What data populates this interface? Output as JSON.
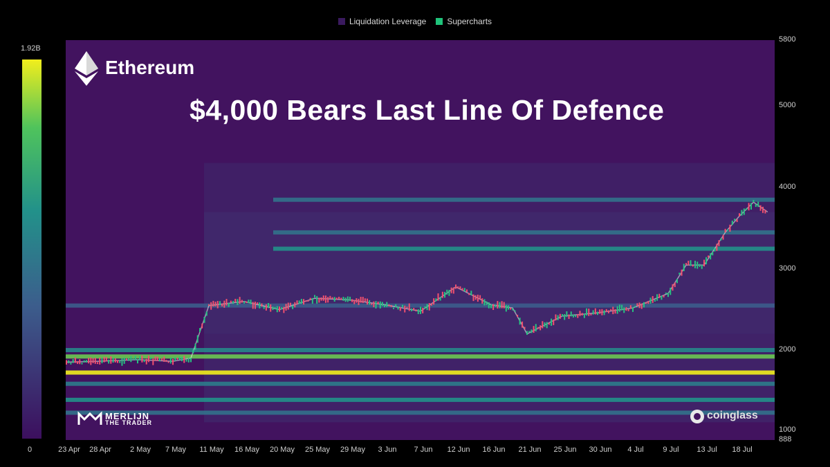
{
  "legend": [
    {
      "label": "Liquidation Leverage",
      "color": "#3a1a5e"
    },
    {
      "label": "Supercharts",
      "color": "#1fc37a"
    }
  ],
  "colorbar": {
    "max_label": "1.92B",
    "min_label": "0"
  },
  "overlay": {
    "asset": "Ethereum",
    "headline": "$4,000 Bears Last Line Of Defence",
    "watermark_left_line1": "MERLIJN",
    "watermark_left_line2": "THE TRADER",
    "watermark_right": "coinglass"
  },
  "chart_data": {
    "type": "heatmap",
    "title": "",
    "xlabel": "",
    "ylabel": "",
    "y_ticks": [
      888,
      1000,
      2000,
      3000,
      4000,
      5000,
      5800
    ],
    "ylim": [
      888,
      5800
    ],
    "x_ticks": [
      "23 Apr",
      "28 Apr",
      "2 May",
      "7 May",
      "11 May",
      "16 May",
      "20 May",
      "25 May",
      "29 May",
      "3 Jun",
      "7 Jun",
      "12 Jun",
      "16 Jun",
      "21 Jun",
      "25 Jun",
      "30 Jun",
      "4 Jul",
      "9 Jul",
      "13 Jul",
      "18 Jul"
    ],
    "colorbar_range": [
      "0",
      "1.92B"
    ],
    "liquidation_levels": [
      {
        "price": 1720,
        "intensity": 1.0
      },
      {
        "price": 1920,
        "intensity": 0.85
      },
      {
        "price": 2000,
        "intensity": 0.55
      },
      {
        "price": 1580,
        "intensity": 0.5
      },
      {
        "price": 1380,
        "intensity": 0.6
      },
      {
        "price": 1220,
        "intensity": 0.45
      },
      {
        "price": 2550,
        "intensity": 0.35
      },
      {
        "price": 3250,
        "intensity": 0.6
      },
      {
        "price": 3450,
        "intensity": 0.45
      },
      {
        "price": 3850,
        "intensity": 0.45
      }
    ],
    "price_series": {
      "name": "",
      "points": [
        [
          "23 Apr",
          1850
        ],
        [
          "28 Apr",
          1860
        ],
        [
          "2 May",
          1880
        ],
        [
          "7 May",
          1860
        ],
        [
          "9 May",
          1900
        ],
        [
          "11 May",
          2550
        ],
        [
          "16 May",
          2600
        ],
        [
          "20 May",
          2500
        ],
        [
          "25 May",
          2640
        ],
        [
          "29 May",
          2620
        ],
        [
          "3 Jun",
          2560
        ],
        [
          "7 Jun",
          2480
        ],
        [
          "12 Jun",
          2780
        ],
        [
          "16 Jun",
          2560
        ],
        [
          "19 Jun",
          2520
        ],
        [
          "21 Jun",
          2200
        ],
        [
          "25 Jun",
          2420
        ],
        [
          "30 Jun",
          2460
        ],
        [
          "4 Jul",
          2520
        ],
        [
          "9 Jul",
          2700
        ],
        [
          "11 Jul",
          3050
        ],
        [
          "13 Jul",
          3050
        ],
        [
          "16 Jul",
          3450
        ],
        [
          "18 Jul",
          3650
        ],
        [
          "20 Jul",
          3820
        ],
        [
          "22 Jul",
          3700
        ]
      ]
    }
  }
}
